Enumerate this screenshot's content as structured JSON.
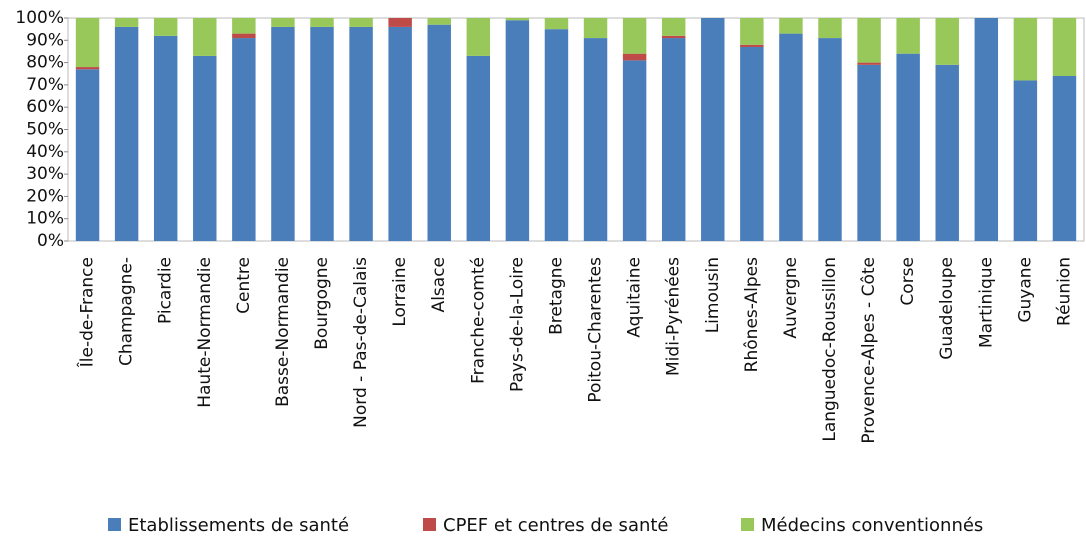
{
  "chart_data": {
    "type": "bar",
    "stacked": true,
    "categories": [
      "Île-de-France",
      "Champagne-",
      "Picardie",
      "Haute-Normandie",
      "Centre",
      "Basse-Normandie",
      "Bourgogne",
      "Nord - Pas-de-Calais",
      "Lorraine",
      "Alsace",
      "Franche-comté",
      "Pays-de-la-Loire",
      "Bretagne",
      "Poitou-Charentes",
      "Aquitaine",
      "Midi-Pyrénées",
      "Limousin",
      "Rhônes-Alpes",
      "Auvergne",
      "Languedoc-Roussillon",
      "Provence-Alpes - Côte",
      "Corse",
      "Guadeloupe",
      "Martinique",
      "Guyane",
      "Réunion"
    ],
    "series": [
      {
        "name": "Etablissements de santé",
        "color": "#4a7ebb",
        "values": [
          77,
          96,
          92,
          83,
          91,
          96,
          96,
          96,
          96,
          97,
          83,
          99,
          95,
          91,
          81,
          91,
          100,
          87,
          93,
          91,
          79,
          84,
          79,
          100,
          72,
          74
        ]
      },
      {
        "name": "CPEF et centres de santé",
        "color": "#be4b48",
        "values": [
          1,
          0,
          0,
          0,
          2,
          0,
          0,
          0,
          4,
          0,
          0,
          0,
          0,
          0,
          3,
          1,
          0,
          1,
          0,
          0,
          1,
          0,
          0,
          0,
          0,
          0
        ]
      },
      {
        "name": "Médecins conventionnés",
        "color": "#98c75a",
        "values": [
          22,
          4,
          8,
          17,
          7,
          4,
          4,
          4,
          0,
          3,
          17,
          1,
          5,
          9,
          16,
          8,
          0,
          12,
          7,
          9,
          20,
          16,
          21,
          0,
          28,
          26
        ]
      }
    ],
    "ylim": [
      0,
      100
    ],
    "yticks": [
      {
        "value": 0,
        "label": "0%"
      },
      {
        "value": 10,
        "label": "10%"
      },
      {
        "value": 20,
        "label": "20%"
      },
      {
        "value": 30,
        "label": "30%"
      },
      {
        "value": 40,
        "label": "40%"
      },
      {
        "value": 50,
        "label": "50%"
      },
      {
        "value": 60,
        "label": "60%"
      },
      {
        "value": 70,
        "label": "70%"
      },
      {
        "value": 80,
        "label": "80%"
      },
      {
        "value": 90,
        "label": "90%"
      },
      {
        "value": 100,
        "label": "100%"
      }
    ],
    "grid": false,
    "legend": "bottom"
  }
}
